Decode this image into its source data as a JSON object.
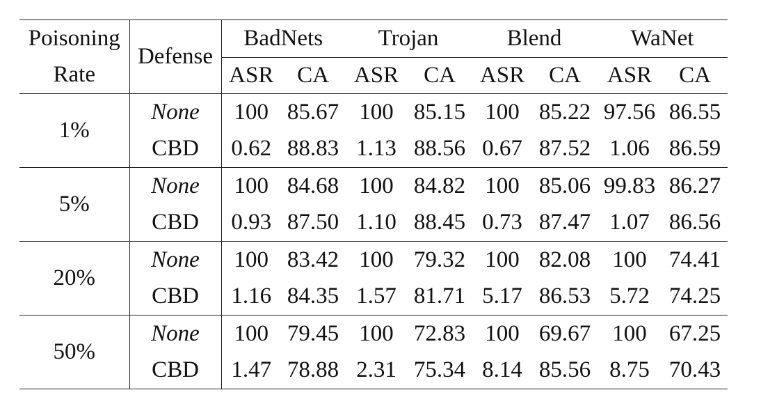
{
  "table": {
    "header": {
      "poisoning_rate_line1": "Poisoning",
      "poisoning_rate_line2": "Rate",
      "defense": "Defense",
      "attacks": [
        "BadNets",
        "Trojan",
        "Blend",
        "WaNet"
      ],
      "metrics": [
        "ASR",
        "CA",
        "ASR",
        "CA",
        "ASR",
        "CA",
        "ASR",
        "CA"
      ]
    },
    "groups": [
      {
        "rate": "1%",
        "rows": [
          {
            "defense": "None",
            "values": [
              "100",
              "85.67",
              "100",
              "85.15",
              "100",
              "85.22",
              "97.56",
              "86.55"
            ]
          },
          {
            "defense": "CBD",
            "values": [
              "0.62",
              "88.83",
              "1.13",
              "88.56",
              "0.67",
              "87.52",
              "1.06",
              "86.59"
            ]
          }
        ]
      },
      {
        "rate": "5%",
        "rows": [
          {
            "defense": "None",
            "values": [
              "100",
              "84.68",
              "100",
              "84.82",
              "100",
              "85.06",
              "99.83",
              "86.27"
            ]
          },
          {
            "defense": "CBD",
            "values": [
              "0.93",
              "87.50",
              "1.10",
              "88.45",
              "0.73",
              "87.47",
              "1.07",
              "86.56"
            ]
          }
        ]
      },
      {
        "rate": "20%",
        "rows": [
          {
            "defense": "None",
            "values": [
              "100",
              "83.42",
              "100",
              "79.32",
              "100",
              "82.08",
              "100",
              "74.41"
            ]
          },
          {
            "defense": "CBD",
            "values": [
              "1.16",
              "84.35",
              "1.57",
              "81.71",
              "5.17",
              "86.53",
              "5.72",
              "74.25"
            ]
          }
        ]
      },
      {
        "rate": "50%",
        "rows": [
          {
            "defense": "None",
            "values": [
              "100",
              "79.45",
              "100",
              "72.83",
              "100",
              "69.67",
              "100",
              "67.25"
            ]
          },
          {
            "defense": "CBD",
            "values": [
              "1.47",
              "78.88",
              "2.31",
              "75.34",
              "8.14",
              "85.56",
              "8.75",
              "70.43"
            ]
          }
        ]
      }
    ]
  }
}
